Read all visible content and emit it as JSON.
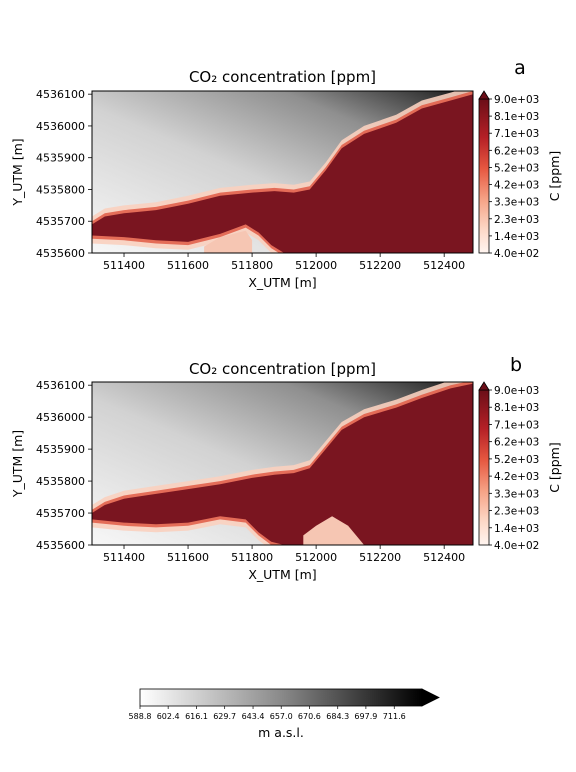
{
  "figure": {
    "bottom_colorbar": {
      "label": "m a.s.l.",
      "ticks": [
        "588.8",
        "602.4",
        "616.1",
        "629.7",
        "643.4",
        "657.0",
        "670.6",
        "684.3",
        "697.9",
        "711.6"
      ],
      "colormap": "greys",
      "range": [
        588.8,
        725.0
      ],
      "extend": "max"
    }
  },
  "chart_data": [
    {
      "type": "heatmap",
      "panel_letter": "a",
      "title": "CO₂ concentration [ppm]",
      "xlabel": "X_UTM [m]",
      "ylabel": "Y_UTM [m]",
      "xlim": [
        511300,
        512490
      ],
      "ylim": [
        4535600,
        4536110
      ],
      "xticks": [
        "511400",
        "511600",
        "511800",
        "512000",
        "512200",
        "512400"
      ],
      "yticks": [
        "4535600",
        "4535700",
        "4535800",
        "4535900",
        "4536000",
        "4536100"
      ],
      "colorbar": {
        "label": "C [ppm]",
        "ticks": [
          "4.0e+02",
          "1.4e+03",
          "2.3e+03",
          "3.3e+03",
          "4.2e+03",
          "5.2e+03",
          "6.2e+03",
          "7.1e+03",
          "8.1e+03",
          "9.0e+03"
        ],
        "range": [
          400,
          9000
        ],
        "extend": "max",
        "colormap": "reds"
      },
      "plume_boundary": {
        "upper_edge": [
          [
            511300,
            4535690
          ],
          [
            511340,
            4535715
          ],
          [
            511400,
            4535725
          ],
          [
            511500,
            4535735
          ],
          [
            511600,
            4535755
          ],
          [
            511700,
            4535780
          ],
          [
            511800,
            4535790
          ],
          [
            511870,
            4535795
          ],
          [
            511930,
            4535790
          ],
          [
            511980,
            4535800
          ],
          [
            512030,
            4535860
          ],
          [
            512080,
            4535930
          ],
          [
            512150,
            4535975
          ],
          [
            512250,
            4536010
          ],
          [
            512330,
            4536055
          ],
          [
            512420,
            4536080
          ],
          [
            512490,
            4536100
          ]
        ],
        "lower_edge": [
          [
            511300,
            4535655
          ],
          [
            511400,
            4535650
          ],
          [
            511500,
            4535640
          ],
          [
            511600,
            4535635
          ],
          [
            511700,
            4535660
          ],
          [
            511780,
            4535690
          ],
          [
            511820,
            4535665
          ],
          [
            511860,
            4535625
          ],
          [
            511900,
            4535600
          ],
          [
            512490,
            4535600
          ]
        ],
        "hole": [
          [
            511650,
            4535600
          ],
          [
            511650,
            4535620
          ],
          [
            511700,
            4535650
          ],
          [
            511780,
            4535670
          ],
          [
            511800,
            4535640
          ],
          [
            511800,
            4535600
          ]
        ]
      }
    },
    {
      "type": "heatmap",
      "panel_letter": "b",
      "title": "CO₂ concentration [ppm]",
      "xlabel": "X_UTM [m]",
      "ylabel": "Y_UTM [m]",
      "xlim": [
        511300,
        512490
      ],
      "ylim": [
        4535600,
        4536110
      ],
      "xticks": [
        "511400",
        "511600",
        "511800",
        "512000",
        "512200",
        "512400"
      ],
      "yticks": [
        "4535600",
        "4535700",
        "4535800",
        "4535900",
        "4536000",
        "4536100"
      ],
      "colorbar": {
        "label": "C [ppm]",
        "ticks": [
          "4.0e+02",
          "1.4e+03",
          "2.3e+03",
          "3.3e+03",
          "4.2e+03",
          "5.2e+03",
          "6.2e+03",
          "7.1e+03",
          "8.1e+03",
          "9.0e+03"
        ],
        "range": [
          400,
          9000
        ],
        "extend": "max",
        "colormap": "reds"
      },
      "plume_boundary": {
        "upper_edge": [
          [
            511300,
            4535700
          ],
          [
            511340,
            4535725
          ],
          [
            511400,
            4535745
          ],
          [
            511500,
            4535760
          ],
          [
            511600,
            4535775
          ],
          [
            511700,
            4535790
          ],
          [
            511800,
            4535810
          ],
          [
            511870,
            4535820
          ],
          [
            511930,
            4535825
          ],
          [
            511980,
            4535840
          ],
          [
            512030,
            4535900
          ],
          [
            512080,
            4535960
          ],
          [
            512150,
            4536000
          ],
          [
            512250,
            4536030
          ],
          [
            512330,
            4536060
          ],
          [
            512420,
            4536090
          ],
          [
            512490,
            4536105
          ]
        ],
        "lower_edge": [
          [
            511300,
            4535680
          ],
          [
            511400,
            4535670
          ],
          [
            511500,
            4535665
          ],
          [
            511600,
            4535670
          ],
          [
            511700,
            4535690
          ],
          [
            511780,
            4535680
          ],
          [
            511820,
            4535640
          ],
          [
            511860,
            4535610
          ],
          [
            511900,
            4535600
          ],
          [
            512490,
            4535600
          ]
        ],
        "hole": [
          [
            511960,
            4535600
          ],
          [
            511960,
            4535630
          ],
          [
            512000,
            4535660
          ],
          [
            512050,
            4535690
          ],
          [
            512100,
            4535660
          ],
          [
            512150,
            4535600
          ]
        ]
      }
    }
  ]
}
